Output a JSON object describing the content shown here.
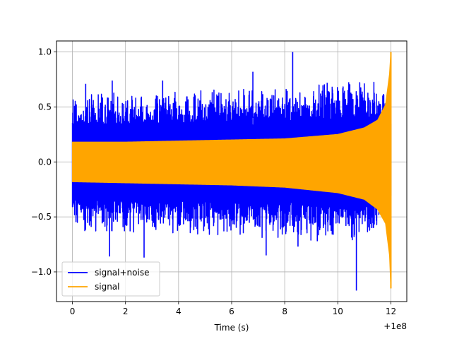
{
  "chart_data": {
    "type": "line",
    "title": "",
    "xlabel": "Time (s)",
    "ylabel": "",
    "x_offset_label": "+1e8",
    "xlim": [
      -0.6,
      12.6
    ],
    "ylim": [
      -1.27,
      1.1
    ],
    "x_ticks": [
      0,
      2,
      4,
      6,
      8,
      10,
      12
    ],
    "x_tick_labels": [
      "0",
      "2",
      "4",
      "6",
      "8",
      "10",
      "12"
    ],
    "y_ticks": [
      -1.0,
      -0.5,
      0.0,
      0.5,
      1.0
    ],
    "y_tick_labels": [
      "−1.0",
      "−0.5",
      "0.0",
      "0.5",
      "1.0"
    ],
    "grid": true,
    "legend_position": "lower-left",
    "series": [
      {
        "name": "signal+noise",
        "color": "#0000ff",
        "envelope": {
          "t": [
            0,
            2,
            4,
            6,
            8,
            10,
            11,
            11.5,
            11.8,
            12
          ],
          "upper": [
            0.62,
            0.63,
            0.64,
            0.66,
            0.68,
            0.72,
            0.74,
            0.74,
            0.72,
            0.45
          ],
          "lower": [
            -0.63,
            -0.64,
            -0.65,
            -0.67,
            -0.7,
            -0.74,
            -0.7,
            -0.66,
            -0.62,
            -0.45
          ]
        },
        "peaks": [
          {
            "t": 0.5,
            "y": 0.71
          },
          {
            "t": 1.5,
            "y": 0.74
          },
          {
            "t": 3.4,
            "y": 0.74
          },
          {
            "t": 6.8,
            "y": 0.82
          },
          {
            "t": 8.3,
            "y": 1.0
          },
          {
            "t": 9.6,
            "y": 0.72
          },
          {
            "t": 1.4,
            "y": -0.86
          },
          {
            "t": 2.7,
            "y": -0.87
          },
          {
            "t": 7.3,
            "y": -0.85
          },
          {
            "t": 8.5,
            "y": -0.77
          },
          {
            "t": 10.7,
            "y": -1.17
          }
        ]
      },
      {
        "name": "signal",
        "color": "#ffa500",
        "envelope": {
          "t": [
            0,
            2,
            4,
            6,
            8,
            10,
            11,
            11.5,
            11.8,
            11.95,
            12
          ],
          "upper": [
            0.18,
            0.18,
            0.19,
            0.2,
            0.21,
            0.25,
            0.31,
            0.38,
            0.52,
            0.8,
            1.0
          ],
          "lower": [
            -0.18,
            -0.19,
            -0.2,
            -0.21,
            -0.23,
            -0.28,
            -0.34,
            -0.43,
            -0.56,
            -0.85,
            -1.15
          ]
        }
      }
    ]
  }
}
